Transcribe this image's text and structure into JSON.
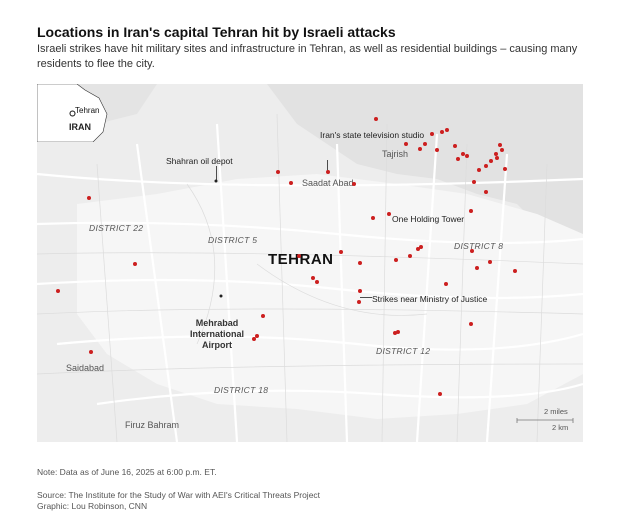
{
  "header": {
    "title": "Locations in Iran's capital Tehran hit by Israeli attacks",
    "subtitle": "Israeli strikes have hit military sites and infrastructure in Tehran, as well as residential buildings – causing many residents to flee the city."
  },
  "map": {
    "city_label": "TEHRAN",
    "inset": {
      "city": "Tehran",
      "country": "IRAN"
    },
    "districts": [
      "DISTRICT 22",
      "DISTRICT 5",
      "DISTRICT 8",
      "DISTRICT 12",
      "DISTRICT 18"
    ],
    "places": [
      "Saadat Abad",
      "Tajrish",
      "Saidabad",
      "Firuz Bahram"
    ],
    "annotations": {
      "oil_depot": "Shahran oil depot",
      "tv_studio": "Iran's state television studio",
      "one_holding": "One Holding Tower",
      "justice": "Strikes near Ministry of Justice"
    },
    "airport": "Mehrabad International Airport",
    "scale": {
      "miles": "2 miles",
      "km": "2 km"
    },
    "strike_color": "#cc1f1f"
  },
  "footer": {
    "note": "Note: Data as of June 16, 2025 at 6:00 p.m. ET.",
    "source": "Source: The Institute for the Study of War with AEI's Critical Threats Project",
    "credit": "Graphic: Lou Robinson, CNN"
  }
}
